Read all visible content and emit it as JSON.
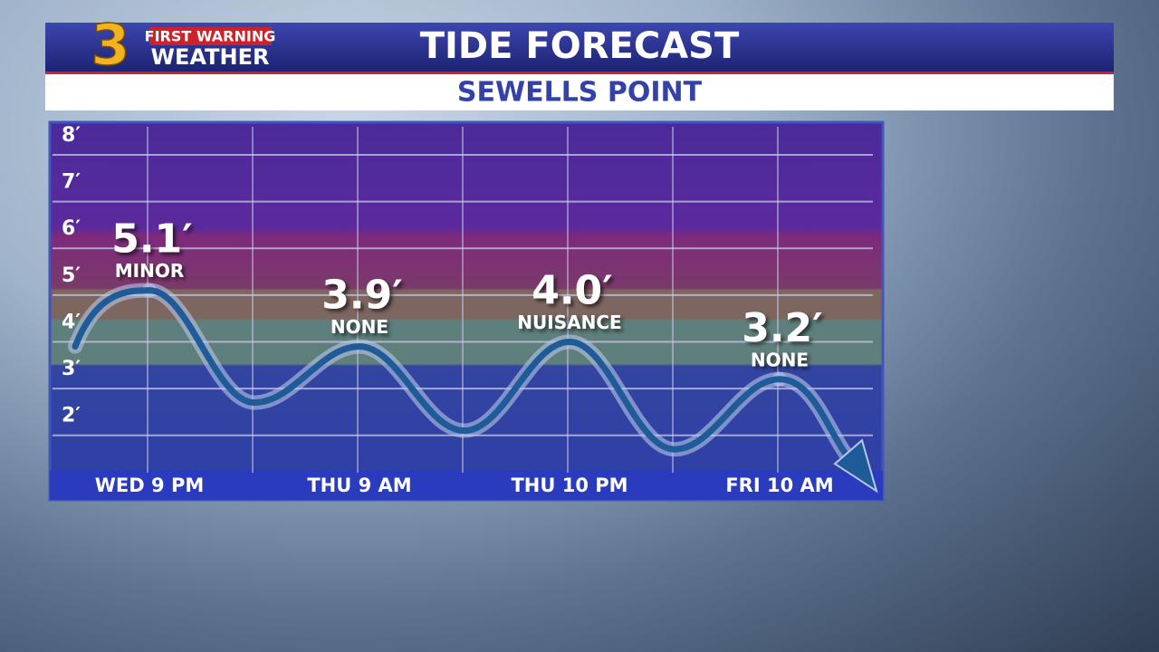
{
  "header": {
    "logo_number": "3",
    "logo_top": "FIRST WARNING",
    "logo_bottom": "WEATHER",
    "title": "TIDE FORECAST",
    "subtitle": "SEWELLS POINT"
  },
  "chart_data": {
    "type": "line",
    "categories": [
      "WED 9 PM",
      "THU 9 AM",
      "THU 10 PM",
      "FRI 10 AM"
    ],
    "values": [
      5.1,
      3.9,
      4.0,
      3.2
    ],
    "value_labels": [
      "5.1′",
      "3.9′",
      "4.0′",
      "3.2′"
    ],
    "annotations": [
      "MINOR",
      "NONE",
      "NUISANCE",
      "NONE"
    ],
    "lows": [
      2.7,
      2.1,
      1.7
    ],
    "color": "#1f5b99",
    "ylim": [
      1.2,
      8.6
    ],
    "yticks": [
      {
        "value": 2,
        "label": "2′"
      },
      {
        "value": 3,
        "label": "3′"
      },
      {
        "value": 4,
        "label": "4′"
      },
      {
        "value": 5,
        "label": "5′"
      },
      {
        "value": 6,
        "label": "6′"
      },
      {
        "value": 7,
        "label": "7′"
      },
      {
        "value": 8,
        "label": "8′"
      }
    ],
    "grid": true
  }
}
